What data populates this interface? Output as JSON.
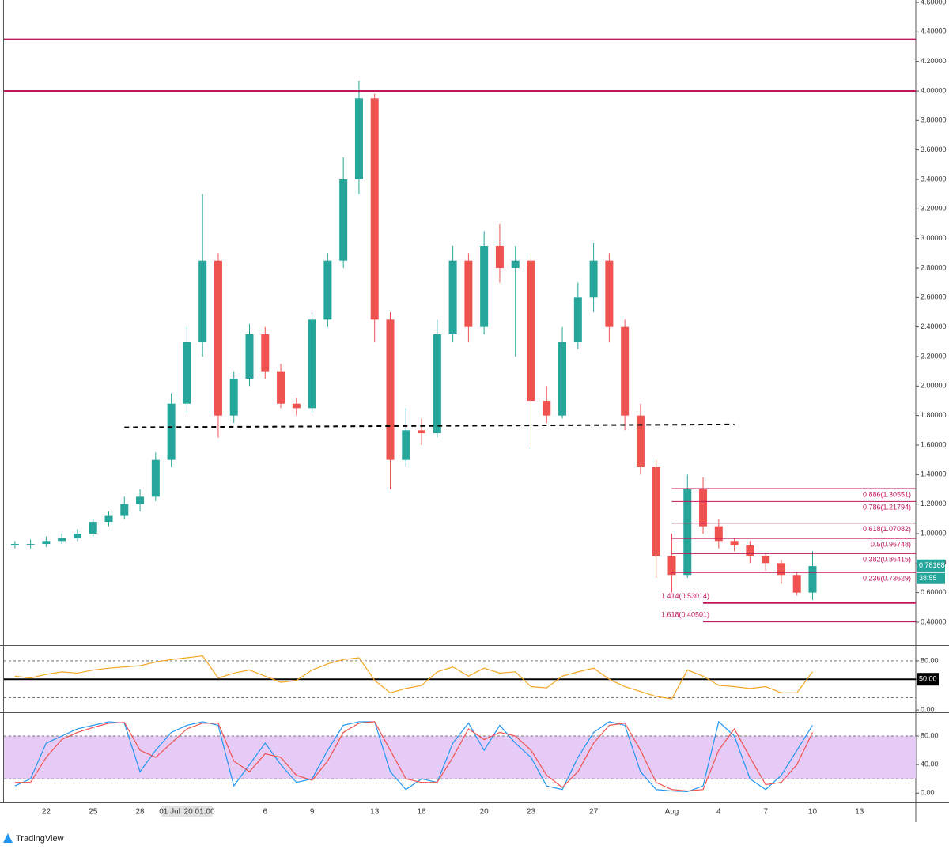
{
  "chart_data": [
    {
      "type": "candlestick",
      "x": [
        -2,
        -1,
        0,
        1,
        2,
        3,
        4,
        5,
        6,
        7,
        8,
        9,
        10,
        11,
        12,
        13,
        14,
        15,
        16,
        17,
        18,
        19,
        20,
        21,
        22,
        23,
        24,
        25,
        26,
        27,
        28,
        29,
        30,
        31,
        32,
        33,
        34,
        35,
        36,
        37,
        38,
        39,
        40,
        41,
        42,
        43,
        44,
        45,
        46,
        47,
        48,
        49
      ],
      "open": [
        0.92,
        0.93,
        0.93,
        0.95,
        0.97,
        1.0,
        1.08,
        1.12,
        1.2,
        1.25,
        1.5,
        1.88,
        2.3,
        2.85,
        1.8,
        2.05,
        2.35,
        2.1,
        1.88,
        1.85,
        2.45,
        2.85,
        3.4,
        3.95,
        2.45,
        1.5,
        1.7,
        1.68,
        2.35,
        2.85,
        2.4,
        2.95,
        2.8,
        2.85,
        1.9,
        1.8,
        2.3,
        2.6,
        2.85,
        2.4,
        1.8,
        1.45,
        0.85,
        0.72,
        1.3,
        1.05,
        0.95,
        0.92,
        0.85,
        0.8,
        0.72,
        0.6
      ],
      "high": [
        0.95,
        0.96,
        0.98,
        1.0,
        1.03,
        1.1,
        1.15,
        1.25,
        1.3,
        1.55,
        1.95,
        2.4,
        3.3,
        2.9,
        2.1,
        2.42,
        2.4,
        2.15,
        1.92,
        2.5,
        2.9,
        3.55,
        4.07,
        3.98,
        2.5,
        1.85,
        1.78,
        2.45,
        2.95,
        2.9,
        3.05,
        3.1,
        2.95,
        2.9,
        2.0,
        2.4,
        2.7,
        2.97,
        2.9,
        2.45,
        1.88,
        1.5,
        1.0,
        1.4,
        1.38,
        1.1,
        0.97,
        0.95,
        0.87,
        0.82,
        0.74,
        0.88
      ],
      "low": [
        0.9,
        0.9,
        0.91,
        0.93,
        0.95,
        0.98,
        1.05,
        1.1,
        1.15,
        1.22,
        1.45,
        1.82,
        2.2,
        1.65,
        1.75,
        2.0,
        2.05,
        1.85,
        1.8,
        1.82,
        2.4,
        2.8,
        3.3,
        2.3,
        1.3,
        1.45,
        1.6,
        1.65,
        2.3,
        2.3,
        2.35,
        2.7,
        2.2,
        1.58,
        1.75,
        1.78,
        2.25,
        2.5,
        2.3,
        1.7,
        1.4,
        0.7,
        0.6,
        0.7,
        1.0,
        0.9,
        0.88,
        0.8,
        0.75,
        0.66,
        0.58,
        0.55
      ],
      "close": [
        0.93,
        0.93,
        0.95,
        0.97,
        1.0,
        1.08,
        1.12,
        1.2,
        1.25,
        1.5,
        1.88,
        2.3,
        2.85,
        1.8,
        2.05,
        2.35,
        2.1,
        1.88,
        1.85,
        2.45,
        2.85,
        3.4,
        3.95,
        2.45,
        1.5,
        1.7,
        1.68,
        2.35,
        2.85,
        2.4,
        2.95,
        2.8,
        2.85,
        1.9,
        1.8,
        2.3,
        2.6,
        2.85,
        2.4,
        1.8,
        1.45,
        0.85,
        0.72,
        1.3,
        1.05,
        0.95,
        0.92,
        0.85,
        0.8,
        0.72,
        0.6,
        0.78
      ],
      "up_color": "#26a69a",
      "down_color": "#ef5350",
      "xlim": [
        -2.7,
        55.6
      ],
      "xticks": [
        {
          "value": 0,
          "label": "22"
        },
        {
          "value": 3,
          "label": "25"
        },
        {
          "value": 6,
          "label": "28"
        },
        {
          "value": 9,
          "label": "01 Jul '20  01:00"
        },
        {
          "value": 14,
          "label": "6"
        },
        {
          "value": 17,
          "label": "9"
        },
        {
          "value": 21,
          "label": "13"
        },
        {
          "value": 24,
          "label": "16"
        },
        {
          "value": 28,
          "label": "20"
        },
        {
          "value": 31,
          "label": "23"
        },
        {
          "value": 35,
          "label": "27"
        },
        {
          "value": 40,
          "label": "Aug"
        },
        {
          "value": 43,
          "label": "4"
        },
        {
          "value": 46,
          "label": "7"
        },
        {
          "value": 49,
          "label": "10"
        },
        {
          "value": 52,
          "label": "13"
        }
      ],
      "ylim": [
        0.25,
        4.616
      ],
      "yticks": [
        {
          "value": 0.4,
          "label": "0.40000"
        },
        {
          "value": 0.6,
          "label": "0.60000"
        },
        {
          "value": 0.8,
          "label": "0.80000"
        },
        {
          "value": 1.0,
          "label": "1.00000"
        },
        {
          "value": 1.2,
          "label": "1.20000"
        },
        {
          "value": 1.4,
          "label": "1.40000"
        },
        {
          "value": 1.6,
          "label": "1.60000"
        },
        {
          "value": 1.8,
          "label": "1.80000"
        },
        {
          "value": 2.0,
          "label": "2.00000"
        },
        {
          "value": 2.2,
          "label": "2.20000"
        },
        {
          "value": 2.4,
          "label": "2.40000"
        },
        {
          "value": 2.6,
          "label": "2.60000"
        },
        {
          "value": 2.8,
          "label": "2.80000"
        },
        {
          "value": 3.0,
          "label": "3.00000"
        },
        {
          "value": 3.2,
          "label": "3.20000"
        },
        {
          "value": 3.4,
          "label": "3.40000"
        },
        {
          "value": 3.6,
          "label": "3.60000"
        },
        {
          "value": 3.8,
          "label": "3.80000"
        },
        {
          "value": 4.0,
          "label": "4.00000"
        },
        {
          "value": 4.2,
          "label": "4.20000"
        },
        {
          "value": 4.4,
          "label": "4.40000"
        },
        {
          "value": 4.6,
          "label": "4.60000"
        }
      ],
      "levels": [
        {
          "value": 4.35,
          "color": "#c2185b"
        },
        {
          "value": 4.0,
          "color": "#c2185b"
        }
      ],
      "trendline": {
        "x": [
          5,
          44
        ],
        "y": [
          1.72,
          1.74
        ],
        "color": "#000000"
      },
      "fib": {
        "start": 40,
        "color": "#c2185b",
        "levels": [
          {
            "value": 1.30551,
            "label": "0.886(1.30551)"
          },
          {
            "value": 1.21794,
            "label": "0.786(1.21794)"
          },
          {
            "value": 1.07082,
            "label": "0.618(1.07082)"
          },
          {
            "value": 0.96748,
            "label": "0.5(0.96748)"
          },
          {
            "value": 0.86415,
            "label": "0.382(0.86415)"
          },
          {
            "value": 0.73629,
            "label": "0.236(0.73629)"
          }
        ]
      },
      "extensions": {
        "start": 42,
        "color": "#c2185b",
        "levels": [
          {
            "value": 0.53014,
            "label": "1.414(0.53014)"
          },
          {
            "value": 0.40501,
            "label": "1.618(0.40501)"
          }
        ]
      },
      "last_price": 0.78168,
      "countdown": "38:55"
    },
    {
      "type": "line",
      "x": [
        -2,
        -1,
        0,
        1,
        2,
        3,
        4,
        5,
        6,
        7,
        8,
        9,
        10,
        11,
        12,
        13,
        14,
        15,
        16,
        17,
        18,
        19,
        20,
        21,
        22,
        23,
        24,
        25,
        26,
        27,
        28,
        29,
        30,
        31,
        32,
        33,
        34,
        35,
        36,
        37,
        38,
        39,
        40,
        41,
        42,
        43,
        44,
        45,
        46,
        47,
        48,
        49
      ],
      "series": [
        {
          "color": "#f5a623",
          "values": [
            55,
            52,
            58,
            62,
            60,
            65,
            68,
            70,
            72,
            78,
            82,
            85,
            88,
            52,
            60,
            65,
            55,
            45,
            48,
            65,
            75,
            82,
            85,
            48,
            28,
            35,
            40,
            62,
            70,
            55,
            68,
            60,
            62,
            38,
            36,
            55,
            62,
            68,
            50,
            38,
            30,
            22,
            18,
            65,
            55,
            40,
            38,
            35,
            38,
            28,
            28,
            62
          ]
        }
      ],
      "ylim": [
        -2.5,
        103
      ],
      "yticks": [
        {
          "value": 80,
          "label": "80.00"
        },
        {
          "value": 50,
          "label": "50.00"
        },
        {
          "value": 0,
          "label": "0.00"
        }
      ],
      "bands": [
        20,
        80
      ],
      "midline": 50
    },
    {
      "type": "line",
      "x": [
        -2,
        -1,
        0,
        1,
        2,
        3,
        4,
        5,
        6,
        7,
        8,
        9,
        10,
        11,
        12,
        13,
        14,
        15,
        16,
        17,
        18,
        19,
        20,
        21,
        22,
        23,
        24,
        25,
        26,
        27,
        28,
        29,
        30,
        31,
        32,
        33,
        34,
        35,
        36,
        37,
        38,
        39,
        40,
        41,
        42,
        43,
        44,
        45,
        46,
        47,
        48,
        49
      ],
      "series": [
        {
          "color": "#2196f3",
          "values": [
            10,
            20,
            70,
            80,
            90,
            95,
            100,
            98,
            30,
            60,
            85,
            95,
            100,
            95,
            10,
            40,
            70,
            40,
            15,
            20,
            60,
            95,
            100,
            100,
            30,
            5,
            20,
            15,
            70,
            98,
            60,
            95,
            70,
            50,
            10,
            5,
            50,
            85,
            100,
            95,
            30,
            5,
            3,
            2,
            10,
            100,
            80,
            20,
            5,
            25,
            60,
            95
          ]
        },
        {
          "color": "#ef5350",
          "values": [
            15,
            15,
            50,
            75,
            85,
            92,
            98,
            99,
            60,
            50,
            70,
            90,
            98,
            98,
            45,
            30,
            55,
            50,
            25,
            18,
            45,
            85,
            98,
            100,
            60,
            20,
            15,
            15,
            50,
            90,
            75,
            85,
            80,
            60,
            25,
            8,
            30,
            70,
            95,
            98,
            60,
            15,
            5,
            3,
            5,
            60,
            90,
            50,
            12,
            15,
            40,
            85
          ]
        }
      ],
      "ylim": [
        -13,
        111
      ],
      "yticks": [
        {
          "value": 80,
          "label": "80.00"
        },
        {
          "value": 40,
          "label": "40.00"
        },
        {
          "value": 0,
          "label": "0.00"
        }
      ],
      "bands": [
        20,
        80
      ],
      "band_color": "#e6cbf7"
    }
  ],
  "brand": "TradingView"
}
